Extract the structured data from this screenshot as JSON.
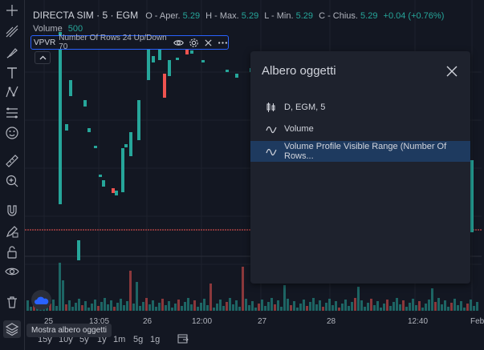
{
  "header": {
    "symbol": "DIRECTA SIM · 5 · EGM",
    "ohlc": [
      {
        "label": "O - Aper.",
        "value": "5.29"
      },
      {
        "label": "H - Max.",
        "value": "5.29"
      },
      {
        "label": "L - Min.",
        "value": "5.29"
      },
      {
        "label": "C - Chius.",
        "value": "5.29"
      }
    ],
    "change": "+0.04 (+0.76%)",
    "volume_label": "Volume",
    "volume_value": "500",
    "indicator": {
      "name": "VPVR",
      "params": "Number Of Rows 24 Up/Down 70"
    }
  },
  "left_toolbar": {
    "icons": [
      "crosshair-icon",
      "trendline-icon",
      "brush-icon",
      "text-icon",
      "pattern-icon",
      "fib-icon",
      "smile-icon",
      "ruler-icon",
      "zoom-in-icon",
      "magnet-icon",
      "lock-pencil-icon",
      "lock-icon",
      "eye-icon",
      "trash-icon",
      "layers-icon"
    ]
  },
  "object_tree": {
    "title": "Albero oggetti",
    "items": [
      {
        "label": "D, EGM, 5",
        "icon": "candles-icon"
      },
      {
        "label": "Volume",
        "icon": "wave-icon"
      },
      {
        "label": "Volume Profile Visible Range (Number Of Rows...",
        "icon": "wave-icon"
      }
    ],
    "selected_index": 2
  },
  "x_axis": {
    "labels": [
      "25",
      "13:05",
      "26",
      "12:00",
      "27",
      "28",
      "12:40",
      "Feb"
    ]
  },
  "timeframes": [
    "15y",
    "10y",
    "5y",
    "1y",
    "1m",
    "5g",
    "1g"
  ],
  "tooltip": "Mostra albero oggetti",
  "colors": {
    "up": "#26a69a",
    "down": "#ef5350",
    "bg": "#131722",
    "panel": "#1e222d",
    "accent": "#2962ff"
  }
}
